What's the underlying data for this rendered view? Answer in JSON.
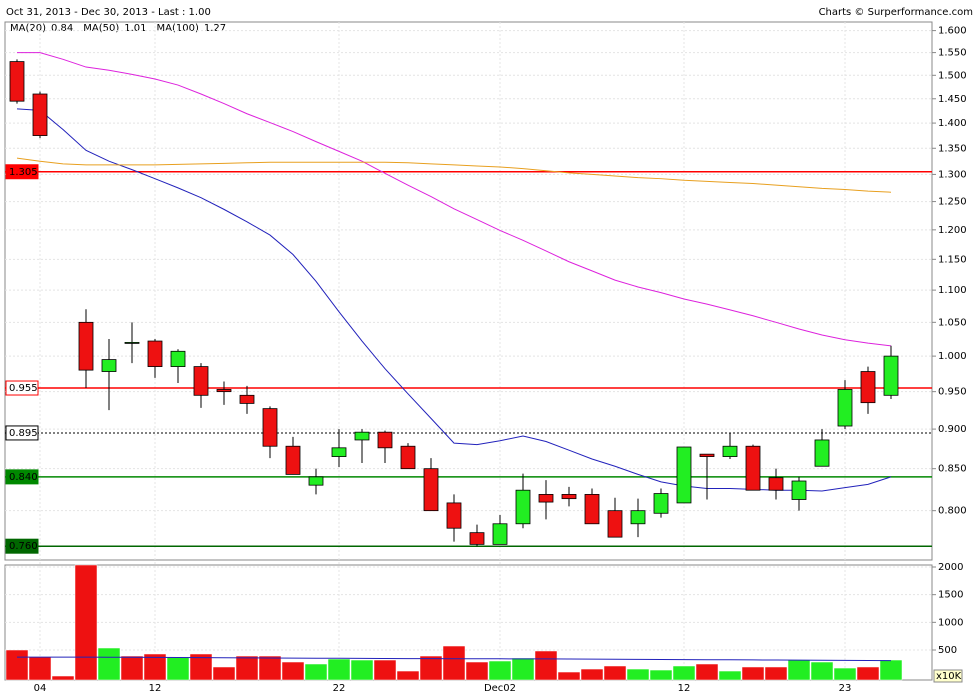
{
  "chart_data": [
    {
      "type": "candlestick",
      "title": "Oct 31, 2013 - Dec 30, 2013 - Last : 1.00",
      "source": "Charts © Surperformance.com",
      "log_scale": true,
      "grid": true,
      "up_color": "#22ee22",
      "down_color": "#ee1111",
      "categories": [
        null,
        "04",
        null,
        null,
        null,
        null,
        "12",
        null,
        null,
        null,
        null,
        null,
        null,
        null,
        "22",
        null,
        null,
        null,
        null,
        null,
        null,
        "Dec02",
        null,
        null,
        null,
        null,
        null,
        null,
        null,
        "12",
        null,
        null,
        null,
        null,
        null,
        null,
        "23",
        null,
        null
      ],
      "open": [
        1.53,
        1.46,
        null,
        1.05,
        0.978,
        1.02,
        1.022,
        0.985,
        0.985,
        0.953,
        0.945,
        0.927,
        0.878,
        0.83,
        0.865,
        0.886,
        0.896,
        0.878,
        0.85,
        0.809,
        0.775,
        0.762,
        0.785,
        0.819,
        0.819,
        0.819,
        0.8,
        0.785,
        0.797,
        0.809,
        0.868,
        0.865,
        0.878,
        0.839,
        0.813,
        0.853,
        0.904,
        0.978,
        0.945
      ],
      "high": [
        1.535,
        1.465,
        null,
        1.07,
        1.025,
        1.05,
        1.025,
        1.01,
        0.99,
        0.964,
        0.958,
        0.93,
        0.89,
        0.85,
        0.9,
        0.9,
        0.898,
        0.882,
        0.863,
        0.819,
        0.784,
        0.795,
        0.844,
        0.836,
        0.828,
        0.826,
        0.815,
        0.814,
        0.826,
        0.877,
        0.868,
        0.895,
        0.88,
        0.85,
        0.84,
        0.9,
        0.966,
        0.985,
        1.015
      ],
      "low": [
        1.44,
        1.37,
        null,
        0.955,
        0.925,
        0.99,
        0.969,
        0.962,
        0.928,
        0.932,
        0.92,
        0.863,
        0.843,
        0.819,
        0.852,
        0.857,
        0.857,
        0.85,
        0.8,
        0.765,
        0.76,
        0.762,
        0.78,
        0.79,
        0.805,
        0.785,
        0.77,
        0.77,
        0.792,
        0.809,
        0.813,
        0.862,
        0.824,
        0.813,
        0.8,
        0.853,
        0.9,
        0.92,
        0.94
      ],
      "close": [
        1.445,
        1.375,
        null,
        0.98,
        0.995,
        1.02,
        0.985,
        1.007,
        0.945,
        0.95,
        0.934,
        0.878,
        0.843,
        0.84,
        0.876,
        0.896,
        0.876,
        0.85,
        0.8,
        0.78,
        0.762,
        0.785,
        0.824,
        0.81,
        0.814,
        0.785,
        0.77,
        0.8,
        0.82,
        0.877,
        0.865,
        0.878,
        0.824,
        0.824,
        0.835,
        0.886,
        0.953,
        0.935,
        1.0
      ],
      "moving_averages": [
        {
          "name": "MA(20)",
          "color": "#2222bb",
          "last": 0.84,
          "values": [
            1.429,
            1.426,
            1.387,
            1.346,
            1.325,
            1.309,
            1.292,
            1.275,
            1.257,
            1.236,
            1.214,
            1.191,
            1.158,
            1.114,
            1.066,
            1.022,
            0.982,
            0.947,
            0.914,
            0.882,
            0.88,
            0.885,
            0.891,
            0.884,
            0.873,
            0.862,
            0.853,
            0.843,
            0.834,
            0.829,
            0.826,
            0.826,
            0.825,
            0.824,
            0.824,
            0.823,
            0.827,
            0.831,
            0.84
          ]
        },
        {
          "name": "MA(50)",
          "color": "#dd22dd",
          "last": 1.01,
          "values": [
            1.55,
            1.55,
            1.535,
            1.518,
            1.511,
            1.502,
            1.492,
            1.479,
            1.46,
            1.44,
            1.419,
            1.401,
            1.383,
            1.363,
            1.344,
            1.325,
            1.302,
            1.28,
            1.259,
            1.237,
            1.218,
            1.199,
            1.182,
            1.164,
            1.146,
            1.131,
            1.116,
            1.105,
            1.096,
            1.086,
            1.078,
            1.069,
            1.06,
            1.05,
            1.04,
            1.031,
            1.024,
            1.019,
            1.015
          ]
        },
        {
          "name": "MA(100)",
          "color": "#e8a020",
          "last": 1.27,
          "values": [
            1.331,
            1.325,
            1.32,
            1.318,
            1.318,
            1.318,
            1.318,
            1.319,
            1.32,
            1.321,
            1.322,
            1.323,
            1.323,
            1.323,
            1.323,
            1.323,
            1.323,
            1.322,
            1.32,
            1.318,
            1.316,
            1.314,
            1.311,
            1.307,
            1.303,
            1.3,
            1.297,
            1.294,
            1.292,
            1.289,
            1.287,
            1.285,
            1.283,
            1.28,
            1.277,
            1.274,
            1.272,
            1.269,
            1.267
          ]
        }
      ],
      "hlines": [
        {
          "value": 1.305,
          "label": "1.305",
          "color": "#ff0000",
          "filled": true,
          "dashed": false
        },
        {
          "value": 0.955,
          "label": "0.955",
          "color": "#ff0000",
          "filled": false,
          "dashed": false
        },
        {
          "value": 0.895,
          "label": "0.895",
          "color": "#000000",
          "filled": false,
          "dashed": true
        },
        {
          "value": 0.84,
          "label": "0.840",
          "color": "#008800",
          "filled": true,
          "dashed": false
        },
        {
          "value": 0.76,
          "label": "0.760",
          "color": "#006600",
          "filled": true,
          "dashed": false
        }
      ],
      "ylim": [
        0.745,
        1.62
      ],
      "yticks": [
        {
          "value": 0.8,
          "label": "0.800"
        },
        {
          "value": 0.85,
          "label": "0.850"
        },
        {
          "value": 0.9,
          "label": "0.900"
        },
        {
          "value": 0.95,
          "label": "0.950"
        },
        {
          "value": 1.0,
          "label": "1.000"
        },
        {
          "value": 1.05,
          "label": "1.050"
        },
        {
          "value": 1.1,
          "label": "1.100"
        },
        {
          "value": 1.15,
          "label": "1.150"
        },
        {
          "value": 1.2,
          "label": "1.200"
        },
        {
          "value": 1.25,
          "label": "1.250"
        },
        {
          "value": 1.3,
          "label": "1.300"
        },
        {
          "value": 1.35,
          "label": "1.350"
        },
        {
          "value": 1.4,
          "label": "1.400"
        },
        {
          "value": 1.45,
          "label": "1.450"
        },
        {
          "value": 1.5,
          "label": "1.500"
        },
        {
          "value": 1.55,
          "label": "1.550"
        },
        {
          "value": 1.6,
          "label": "1.600"
        }
      ]
    },
    {
      "type": "bar",
      "y_label": "x10K",
      "values": [
        500,
        373,
        30,
        2036,
        536,
        391,
        428,
        373,
        428,
        193,
        391,
        391,
        283,
        247,
        337,
        319,
        319,
        120,
        391,
        572,
        283,
        301,
        355,
        482,
        102,
        156,
        211,
        156,
        138,
        211,
        247,
        120,
        193,
        193,
        319,
        283,
        174,
        193,
        319
      ],
      "colors": [
        "#ee1111",
        "#ee1111",
        "#ee1111",
        "#ee1111",
        "#22ee22",
        "#ee1111",
        "#ee1111",
        "#22ee22",
        "#ee1111",
        "#ee1111",
        "#ee1111",
        "#ee1111",
        "#ee1111",
        "#22ee22",
        "#22ee22",
        "#22ee22",
        "#ee1111",
        "#ee1111",
        "#ee1111",
        "#ee1111",
        "#ee1111",
        "#22ee22",
        "#22ee22",
        "#ee1111",
        "#ee1111",
        "#ee1111",
        "#ee1111",
        "#22ee22",
        "#22ee22",
        "#22ee22",
        "#ee1111",
        "#22ee22",
        "#ee1111",
        "#ee1111",
        "#22ee22",
        "#22ee22",
        "#22ee22",
        "#ee1111",
        "#22ee22"
      ],
      "ma": {
        "color": "#2222bb",
        "values": [
          372,
          372,
          372,
          372,
          370,
          368,
          366,
          364,
          362,
          360,
          358,
          356,
          354,
          352,
          350,
          348,
          346,
          345,
          344,
          343,
          342,
          341,
          340,
          339,
          337,
          335,
          333,
          331,
          329,
          327,
          325,
          323,
          321,
          319,
          317,
          315,
          313,
          311,
          309
        ]
      },
      "ylim": [
        -42,
        2036
      ],
      "yticks": [
        500,
        1000,
        1500,
        2000
      ],
      "grid": true
    }
  ]
}
